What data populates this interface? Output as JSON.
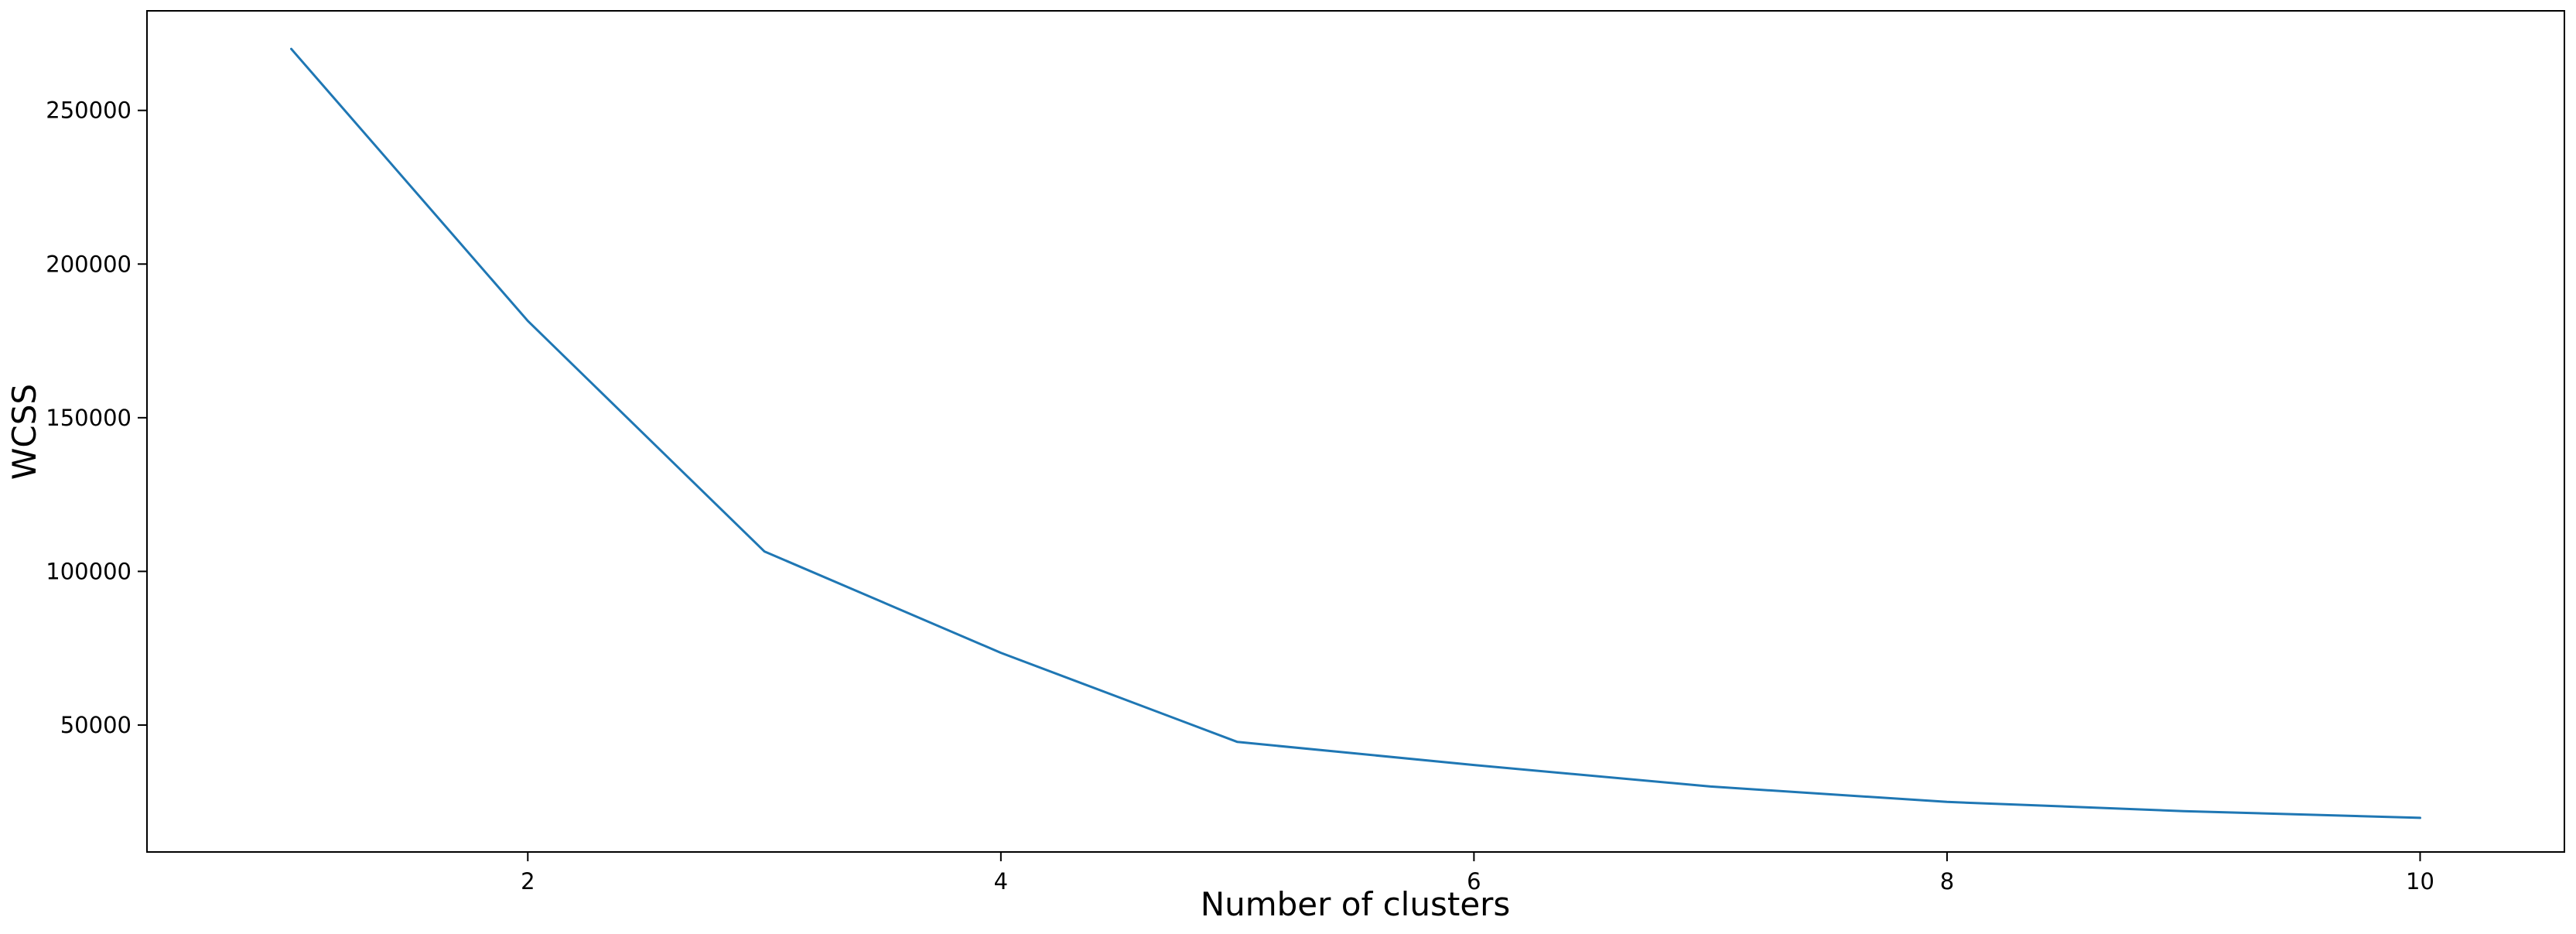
{
  "chart_data": {
    "type": "line",
    "title": "",
    "xlabel": "Number of clusters",
    "ylabel": "WCSS",
    "x": [
      1,
      2,
      3,
      4,
      5,
      6,
      7,
      8,
      9,
      10
    ],
    "series": [
      {
        "values": [
          270000,
          181500,
          106500,
          73500,
          44500,
          37000,
          30000,
          25000,
          22000,
          19800
        ],
        "color": "#1f77b4"
      }
    ],
    "xlim": [
      0.39,
      10.61
    ],
    "ylim": [
      8700,
      282400
    ],
    "xticks": [
      2,
      4,
      6,
      8,
      10
    ],
    "xtick_labels": [
      "2",
      "4",
      "6",
      "8",
      "10"
    ],
    "yticks": [
      50000,
      100000,
      150000,
      200000,
      250000
    ],
    "ytick_labels": [
      "50000",
      "100000",
      "150000",
      "200000",
      "250000"
    ],
    "grid": false,
    "legend": "none"
  }
}
